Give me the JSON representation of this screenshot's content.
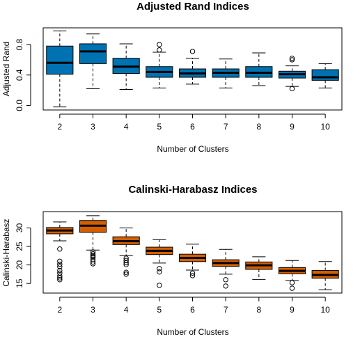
{
  "chart_data": [
    {
      "type": "box",
      "title": "Adjusted Rand Indices",
      "xlabel": "Number of Clusters",
      "ylabel": "Adjusted Rand",
      "ylim": [
        -0.06,
        1.02
      ],
      "yticks": [
        0.0,
        0.4,
        0.8
      ],
      "ytick_labels": [
        "0.0",
        "0.4",
        "0.8"
      ],
      "fill": "#0072b2",
      "categories": [
        "2",
        "3",
        "4",
        "5",
        "6",
        "7",
        "8",
        "9",
        "10"
      ],
      "boxes": [
        {
          "min": -0.02,
          "q1": 0.41,
          "median": 0.56,
          "q3": 0.78,
          "max": 0.98,
          "outliers": []
        },
        {
          "min": 0.22,
          "q1": 0.55,
          "median": 0.71,
          "q3": 0.81,
          "max": 0.94,
          "outliers": []
        },
        {
          "min": 0.21,
          "q1": 0.42,
          "median": 0.51,
          "q3": 0.62,
          "max": 0.81,
          "outliers": []
        },
        {
          "min": 0.23,
          "q1": 0.37,
          "median": 0.44,
          "q3": 0.51,
          "max": 0.7,
          "outliers": [
            0.8,
            0.73
          ]
        },
        {
          "min": 0.28,
          "q1": 0.37,
          "median": 0.42,
          "q3": 0.48,
          "max": 0.62,
          "outliers": [
            0.71
          ]
        },
        {
          "min": 0.23,
          "q1": 0.37,
          "median": 0.43,
          "q3": 0.48,
          "max": 0.61,
          "outliers": []
        },
        {
          "min": 0.26,
          "q1": 0.37,
          "median": 0.43,
          "q3": 0.51,
          "max": 0.69,
          "outliers": []
        },
        {
          "min": 0.25,
          "q1": 0.36,
          "median": 0.41,
          "q3": 0.45,
          "max": 0.52,
          "outliers": [
            0.62,
            0.6,
            0.22
          ]
        },
        {
          "min": 0.23,
          "q1": 0.33,
          "median": 0.37,
          "q3": 0.47,
          "max": 0.55,
          "outliers": []
        }
      ]
    },
    {
      "type": "box",
      "title": "Calinski-Harabasz Indices",
      "xlabel": "Number of Clusters",
      "ylabel": "Calinski-Harabasz",
      "ylim": [
        12.4,
        34.4
      ],
      "yticks": [
        15,
        20,
        25,
        30
      ],
      "ytick_labels": [
        "15",
        "20",
        "25",
        "30"
      ],
      "fill": "#d55e00",
      "categories": [
        "2",
        "3",
        "4",
        "5",
        "6",
        "7",
        "8",
        "9",
        "10"
      ],
      "boxes": [
        {
          "min": 26.5,
          "q1": 28.4,
          "median": 29.3,
          "q3": 30.1,
          "max": 31.6,
          "outliers": [
            24.3,
            21.0,
            20.2,
            19.5,
            18.5,
            17.8,
            17.0,
            16.5,
            16.0
          ]
        },
        {
          "min": 24.0,
          "q1": 28.8,
          "median": 30.6,
          "q3": 32.0,
          "max": 33.3,
          "outliers": [
            23.5,
            23.0,
            22.6,
            22.3,
            22.0,
            21.4,
            20.8,
            20.3
          ]
        },
        {
          "min": 22.5,
          "q1": 25.5,
          "median": 26.4,
          "q3": 27.6,
          "max": 30.0,
          "outliers": [
            21.8,
            21.2,
            20.6,
            20.1,
            18.0,
            17.5
          ]
        },
        {
          "min": 20.5,
          "q1": 22.8,
          "median": 23.8,
          "q3": 24.8,
          "max": 26.8,
          "outliers": [
            19.0,
            18.1,
            14.5
          ]
        },
        {
          "min": 18.6,
          "q1": 20.9,
          "median": 21.9,
          "q3": 22.9,
          "max": 25.6,
          "outliers": [
            17.8,
            17.1
          ]
        },
        {
          "min": 17.5,
          "q1": 19.6,
          "median": 20.5,
          "q3": 21.4,
          "max": 24.2,
          "outliers": [
            16.0,
            14.3
          ]
        },
        {
          "min": 16.1,
          "q1": 18.8,
          "median": 19.9,
          "q3": 20.8,
          "max": 22.2,
          "outliers": []
        },
        {
          "min": 15.8,
          "q1": 17.6,
          "median": 18.4,
          "q3": 19.3,
          "max": 21.2,
          "outliers": [
            15.2,
            13.7
          ]
        },
        {
          "min": 13.3,
          "q1": 16.4,
          "median": 17.3,
          "q3": 18.5,
          "max": 20.9,
          "outliers": []
        }
      ]
    }
  ]
}
